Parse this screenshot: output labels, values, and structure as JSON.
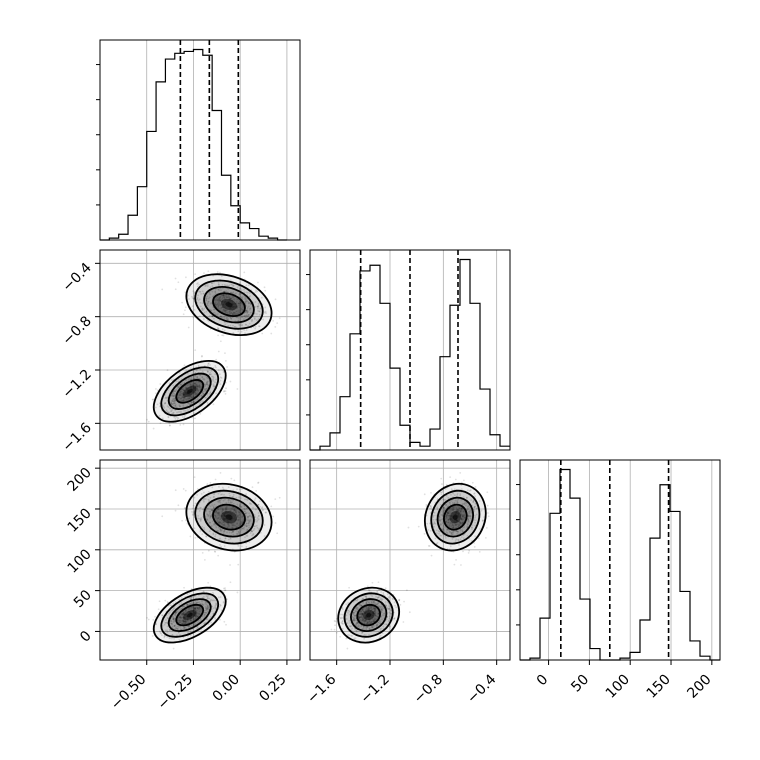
{
  "chart_data": {
    "type": "corner",
    "title": "",
    "parameters": [
      {
        "name": "param-1",
        "label": "",
        "range": [
          -0.75,
          0.32
        ],
        "ticks": [
          -0.5,
          -0.25,
          0.0,
          0.25
        ],
        "tick_labels": [
          "−0.50",
          "−0.25",
          "0.00",
          "0.25"
        ],
        "quantiles": [
          -0.32,
          -0.165,
          -0.01
        ],
        "histogram": {
          "bin_start": -0.75,
          "bin_width": 0.05,
          "counts": [
            0,
            0.01,
            0.03,
            0.13,
            0.28,
            0.57,
            0.83,
            0.95,
            0.98,
            0.99,
            1.0,
            0.97,
            0.68,
            0.34,
            0.18,
            0.09,
            0.06,
            0.02,
            0.01,
            0.0
          ]
        }
      },
      {
        "name": "param-2",
        "label": "",
        "range": [
          -1.8,
          -0.3
        ],
        "ticks": [
          -1.6,
          -1.2,
          -0.8,
          -0.4
        ],
        "tick_labels": [
          "−1.6",
          "−1.2",
          "−0.8",
          "−0.4"
        ],
        "quantiles": [
          -1.42,
          -1.05,
          -0.69
        ],
        "histogram": {
          "bin_start": -1.8,
          "bin_width": 0.075,
          "counts": [
            0,
            0.02,
            0.09,
            0.28,
            0.61,
            0.94,
            0.97,
            0.77,
            0.43,
            0.13,
            0.04,
            0.02,
            0.11,
            0.49,
            0.76,
            1.0,
            0.77,
            0.32,
            0.08,
            0.02
          ]
        }
      },
      {
        "name": "param-3",
        "label": "",
        "range": [
          -35,
          210
        ],
        "ticks": [
          0,
          50,
          100,
          150,
          200
        ],
        "tick_labels": [
          "0",
          "50",
          "100",
          "150",
          "200"
        ],
        "quantiles": [
          15,
          75,
          147
        ],
        "histogram": {
          "bin_start": -35,
          "bin_width": 12.25,
          "counts": [
            0,
            0.01,
            0.22,
            0.77,
            1.0,
            0.85,
            0.32,
            0.06,
            0.0,
            0.0,
            0.01,
            0.04,
            0.21,
            0.64,
            0.92,
            0.78,
            0.36,
            0.1,
            0.02,
            0.0
          ]
        }
      }
    ],
    "modes": [
      {
        "center": [
          -0.06,
          -0.71,
          140
        ],
        "spread": [
          0.095,
          0.095,
          17
        ],
        "corr": [
          -0.28,
          -0.15,
          0.12
        ]
      },
      {
        "center": [
          -0.27,
          -1.36,
          20
        ],
        "spread": [
          0.08,
          0.095,
          14
        ],
        "corr": [
          0.52,
          0.5,
          0.12
        ]
      }
    ],
    "grid": true,
    "legend": "none"
  }
}
